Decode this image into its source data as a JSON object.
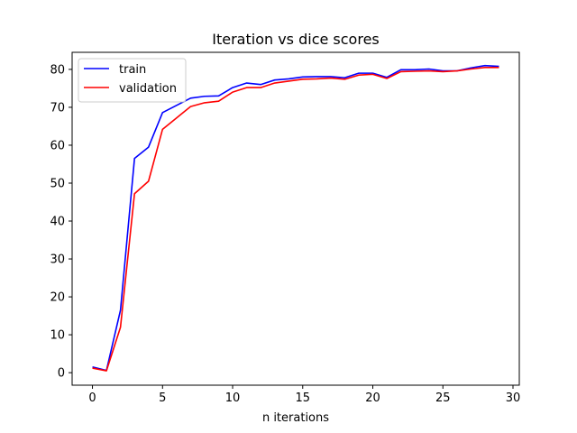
{
  "chart_data": {
    "type": "line",
    "title": "Iteration vs dice scores",
    "xlabel": "n iterations",
    "ylabel": "",
    "xlim": [
      -1.45,
      30.45
    ],
    "ylim": [
      -3.3,
      84.5
    ],
    "xticks": [
      0,
      5,
      10,
      15,
      20,
      25,
      30
    ],
    "yticks": [
      0,
      10,
      20,
      30,
      40,
      50,
      60,
      70,
      80
    ],
    "grid": false,
    "legend_position": "top-left",
    "x": [
      0,
      1,
      2,
      3,
      4,
      5,
      6,
      7,
      8,
      9,
      10,
      11,
      12,
      13,
      14,
      15,
      16,
      17,
      18,
      19,
      20,
      21,
      22,
      23,
      24,
      25,
      26,
      27,
      28,
      29
    ],
    "series": [
      {
        "name": "train",
        "color": "#0000ff",
        "values": [
          1.5,
          0.6,
          16.5,
          56.5,
          59.5,
          68.6,
          70.5,
          72.4,
          72.9,
          73.0,
          75.2,
          76.4,
          76.0,
          77.2,
          77.5,
          78.0,
          78.1,
          78.1,
          77.8,
          79.0,
          79.0,
          77.9,
          79.9,
          79.9,
          80.1,
          79.6,
          79.6,
          80.4,
          81.0,
          80.8
        ]
      },
      {
        "name": "validation",
        "color": "#ff0000",
        "values": [
          1.2,
          0.5,
          12.0,
          47.2,
          50.5,
          64.2,
          67.2,
          70.2,
          71.2,
          71.6,
          74.0,
          75.2,
          75.2,
          76.4,
          76.9,
          77.4,
          77.5,
          77.7,
          77.4,
          78.5,
          78.7,
          77.6,
          79.4,
          79.5,
          79.6,
          79.4,
          79.6,
          80.1,
          80.5,
          80.5
        ]
      }
    ]
  }
}
